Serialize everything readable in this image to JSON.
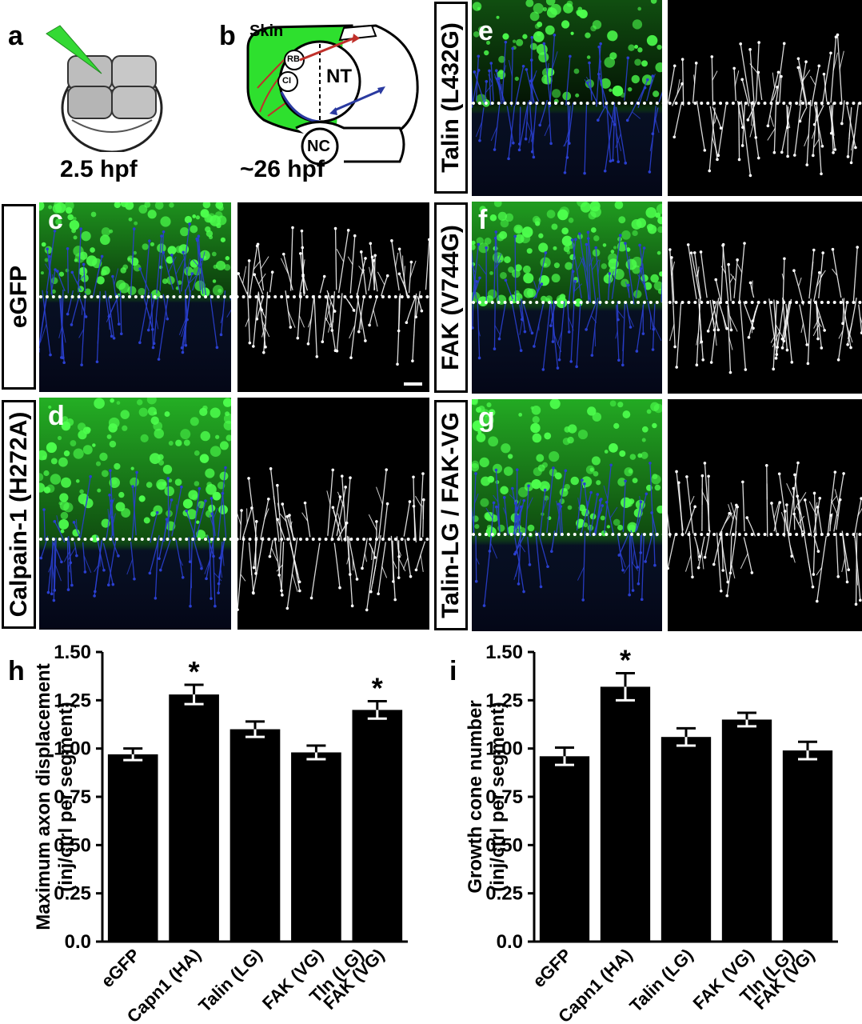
{
  "panels": {
    "a": {
      "label": "a",
      "caption": "2.5 hpf"
    },
    "b": {
      "label": "b",
      "caption": "~26 hpf",
      "skin": "Skin",
      "rb": "RB",
      "ci": "CI",
      "nt": "NT",
      "nc": "NC"
    },
    "c": {
      "label": "c",
      "side_label": "eGFP"
    },
    "d": {
      "label": "d",
      "side_label": "Calpain-1 (H272A)"
    },
    "e": {
      "label": "e",
      "side_label": "Talin (L432G)"
    },
    "f": {
      "label": "f",
      "side_label": "FAK (V744G)"
    },
    "g": {
      "label": "g",
      "side_label": "Talin-LG / FAK-VG"
    },
    "h": {
      "label": "h"
    },
    "i": {
      "label": "i"
    }
  },
  "colors": {
    "gfp": "#2ee02e",
    "axon": "#2a3fd0",
    "bar": "#000000",
    "arrow_red": "#c0302a",
    "arrow_blue": "#2a3aa0"
  },
  "chart_data": [
    {
      "type": "bar",
      "panel": "h",
      "ylabel_line1": "Maximum axon displacement",
      "ylabel_line2": "(inj/ctrl per segment)",
      "categories": [
        "eGFP",
        "Capn1 (HA)",
        "Talin (LG)",
        "FAK (VG)",
        "Tln (LG) FAK (VG)"
      ],
      "category_lines": [
        [
          "eGFP"
        ],
        [
          "Capn1 (HA)"
        ],
        [
          "Talin (LG)"
        ],
        [
          "FAK (VG)"
        ],
        [
          "Tln (LG)",
          "FAK (VG)"
        ]
      ],
      "values": [
        0.97,
        1.28,
        1.1,
        0.98,
        1.2
      ],
      "errors": [
        0.03,
        0.05,
        0.04,
        0.035,
        0.045
      ],
      "significance": [
        "",
        "*",
        "",
        "",
        "*"
      ],
      "ylim": [
        0,
        1.5
      ],
      "yticks": [
        "0.0",
        "0.25",
        "0.50",
        "0.75",
        "1.00",
        "1.25",
        "1.50"
      ],
      "grid": false
    },
    {
      "type": "bar",
      "panel": "i",
      "ylabel_line1": "Growth cone number",
      "ylabel_line2": "(inj/ctrl per segment)",
      "categories": [
        "eGFP",
        "Capn1 (HA)",
        "Talin (LG)",
        "FAK (VG)",
        "Tln (LG) FAK (VG)"
      ],
      "category_lines": [
        [
          "eGFP"
        ],
        [
          "Capn1 (HA)"
        ],
        [
          "Talin (LG)"
        ],
        [
          "FAK (VG)"
        ],
        [
          "Tln (LG)",
          "FAK (VG)"
        ]
      ],
      "values": [
        0.96,
        1.32,
        1.06,
        1.15,
        0.99
      ],
      "errors": [
        0.045,
        0.07,
        0.045,
        0.035,
        0.045
      ],
      "significance": [
        "",
        "*",
        "",
        "",
        ""
      ],
      "ylim": [
        0,
        1.5
      ],
      "yticks": [
        "0.0",
        "0.25",
        "0.50",
        "0.75",
        "1.00",
        "1.25",
        "1.50"
      ],
      "grid": false
    }
  ]
}
